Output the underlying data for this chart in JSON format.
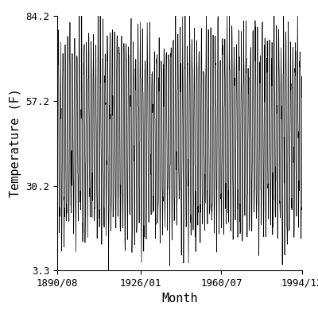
{
  "title": "",
  "xlabel": "Month",
  "ylabel": "Temperature (F)",
  "ylim": [
    3.3,
    84.2
  ],
  "yticks": [
    3.3,
    30.2,
    57.2,
    84.2
  ],
  "ytick_labels": [
    "3.3",
    "30.2",
    "57.2",
    "84.2"
  ],
  "xtick_labels": [
    "1890/08",
    "1926/01",
    "1960/07",
    "1994/12"
  ],
  "xtick_years": [
    1890,
    1926,
    1960,
    1994
  ],
  "xtick_months": [
    8,
    1,
    7,
    12
  ],
  "line_color": "#000000",
  "bg_color": "#ffffff",
  "data_start_year": 1890,
  "data_start_month": 8,
  "data_end_year": 1994,
  "data_end_month": 12,
  "T_summer": 74.0,
  "T_winter": 18.0,
  "noise_std": 6.0,
  "linewidth": 0.5,
  "fontsize": 9,
  "figsize": [
    4.0,
    4.0
  ],
  "dpi": 100
}
